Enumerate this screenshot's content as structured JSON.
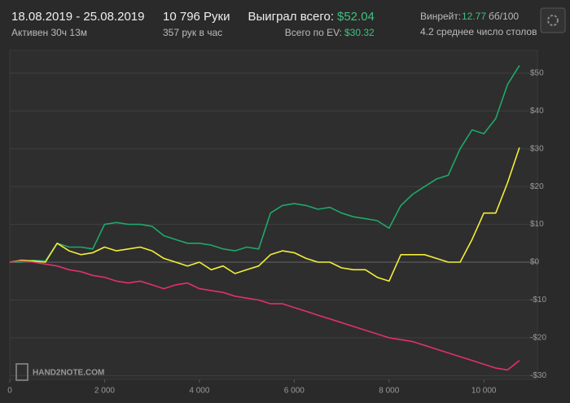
{
  "header": {
    "dates": "18.08.2019 - 25.08.2019",
    "active": "Активен 30ч 13м",
    "hands": "10 796 Руки",
    "per_hour": "357 рук в час",
    "won_label": "Выиграл всего:",
    "won_value": "$52.04",
    "ev_label": "Всего по EV:",
    "ev_value": "$30.32",
    "winrate_label": "Винрейт:",
    "winrate_value": "12.77",
    "winrate_unit": "бб/100",
    "tables": "4.2 среднее число столов"
  },
  "watermark": "HAND2NOTE.COM",
  "chart_data": {
    "type": "line",
    "x": [
      0,
      250,
      500,
      750,
      1000,
      1250,
      1500,
      1750,
      2000,
      2250,
      2500,
      2750,
      3000,
      3250,
      3500,
      3750,
      4000,
      4250,
      4500,
      4750,
      5000,
      5250,
      5500,
      5750,
      6000,
      6250,
      6500,
      6750,
      7000,
      7250,
      7500,
      7750,
      8000,
      8250,
      8500,
      8750,
      9000,
      9250,
      9500,
      9750,
      10000,
      10250,
      10500,
      10750
    ],
    "series": [
      {
        "color": "#1fa86a",
        "values": [
          0,
          0,
          0.5,
          0.3,
          5,
          4,
          4,
          3.5,
          10,
          10.5,
          10,
          10,
          9.5,
          7,
          6,
          5,
          5,
          4.5,
          3.5,
          3,
          4,
          3.5,
          13,
          15,
          15.5,
          15,
          14,
          14.5,
          13,
          12,
          11.5,
          11,
          9,
          15,
          18,
          20,
          22,
          23,
          30,
          35,
          34,
          38,
          47,
          52.04
        ]
      },
      {
        "color": "#f2ee3a",
        "values": [
          0,
          0.5,
          0.3,
          0,
          5,
          3,
          2,
          2.5,
          4,
          3,
          3.5,
          4,
          3,
          1,
          0,
          -1,
          0,
          -2,
          -1,
          -3,
          -2,
          -1,
          2,
          3,
          2.5,
          1,
          0,
          0,
          -1.5,
          -2,
          -2,
          -4,
          -5,
          2,
          2,
          2,
          1,
          0,
          0,
          6,
          13,
          13,
          21,
          30.32
        ]
      },
      {
        "color": "#e0306e",
        "values": [
          0,
          0.3,
          0,
          -0.5,
          -1,
          -2,
          -2.5,
          -3.5,
          -4,
          -5,
          -5.5,
          -5,
          -6,
          -7,
          -6,
          -5.5,
          -7,
          -7.5,
          -8,
          -9,
          -9.5,
          -10,
          -11,
          -11,
          -12,
          -13,
          -14,
          -15,
          -16,
          -17,
          -18,
          -19,
          -20,
          -20.5,
          -21,
          -22,
          -23,
          -24,
          -25,
          -26,
          -27,
          -28,
          -28.5,
          -26
        ]
      }
    ],
    "xlim": [
      0,
      11130
    ],
    "xticks": [
      0,
      {
        "value": 2000,
        "label": "2 000"
      },
      {
        "value": 4000,
        "label": "4 000"
      },
      {
        "value": 6000,
        "label": "6 000"
      },
      {
        "value": 8000,
        "label": "8 000"
      },
      {
        "value": 10000,
        "label": "10 000"
      }
    ],
    "ylim": [
      -31,
      56
    ],
    "yticks": [
      {
        "value": 50,
        "label": "$50"
      },
      {
        "value": 40,
        "label": "$40"
      },
      {
        "value": 30,
        "label": "$30"
      },
      {
        "value": 20,
        "label": "$20"
      },
      {
        "value": 10,
        "label": "$10"
      },
      {
        "value": 0,
        "label": "$0"
      },
      {
        "value": -10,
        "label": "-$10"
      },
      {
        "value": -20,
        "label": "-$20"
      },
      {
        "value": -30,
        "label": "-$30"
      }
    ],
    "grid": true
  }
}
